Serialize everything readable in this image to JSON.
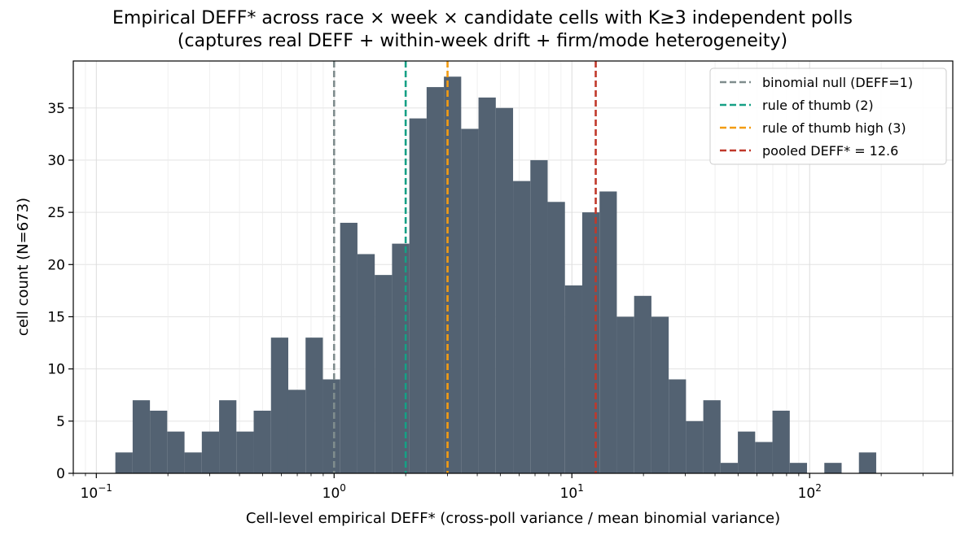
{
  "chart_data": {
    "type": "bar",
    "title": "Empirical DEFF* across race × week × candidate cells with K≥3 independent polls",
    "subtitle": "(captures real DEFF + within-week drift + firm/mode heterogeneity)",
    "xlabel": "Cell-level empirical DEFF* (cross-poll variance / mean binomial variance)",
    "ylabel": "cell count (N=673)",
    "xscale": "log",
    "xlim": [
      0.08,
      400
    ],
    "ylim": [
      0,
      39.5
    ],
    "x_ticks": [
      {
        "value": 0.1,
        "base": "10",
        "exp": "−1"
      },
      {
        "value": 1,
        "base": "10",
        "exp": "0"
      },
      {
        "value": 10,
        "base": "10",
        "exp": "1"
      },
      {
        "value": 100,
        "base": "10",
        "exp": "2"
      }
    ],
    "y_ticks": [
      "0",
      "5",
      "10",
      "15",
      "20",
      "25",
      "30",
      "35"
    ],
    "grid": true,
    "bins_log10_range": [
      -0.92,
      2.28
    ],
    "counts": [
      2,
      7,
      6,
      4,
      2,
      4,
      7,
      4,
      6,
      13,
      8,
      13,
      9,
      24,
      21,
      19,
      22,
      34,
      37,
      38,
      33,
      36,
      35,
      28,
      30,
      26,
      18,
      25,
      27,
      15,
      17,
      15,
      9,
      5,
      7,
      1,
      4,
      3,
      6,
      1,
      0,
      1,
      0,
      2
    ],
    "bar_color": "#536272",
    "reference_lines": [
      {
        "label": "binomial null (DEFF=1)",
        "x": 1,
        "color": "#7f8c8d"
      },
      {
        "label": "rule of thumb (2)",
        "x": 2,
        "color": "#16a085"
      },
      {
        "label": "rule of thumb high (3)",
        "x": 3,
        "color": "#f39c12"
      },
      {
        "label": "pooled DEFF* = 12.6",
        "x": 12.6,
        "color": "#c0392b"
      }
    ],
    "legend_position": "top-right"
  }
}
